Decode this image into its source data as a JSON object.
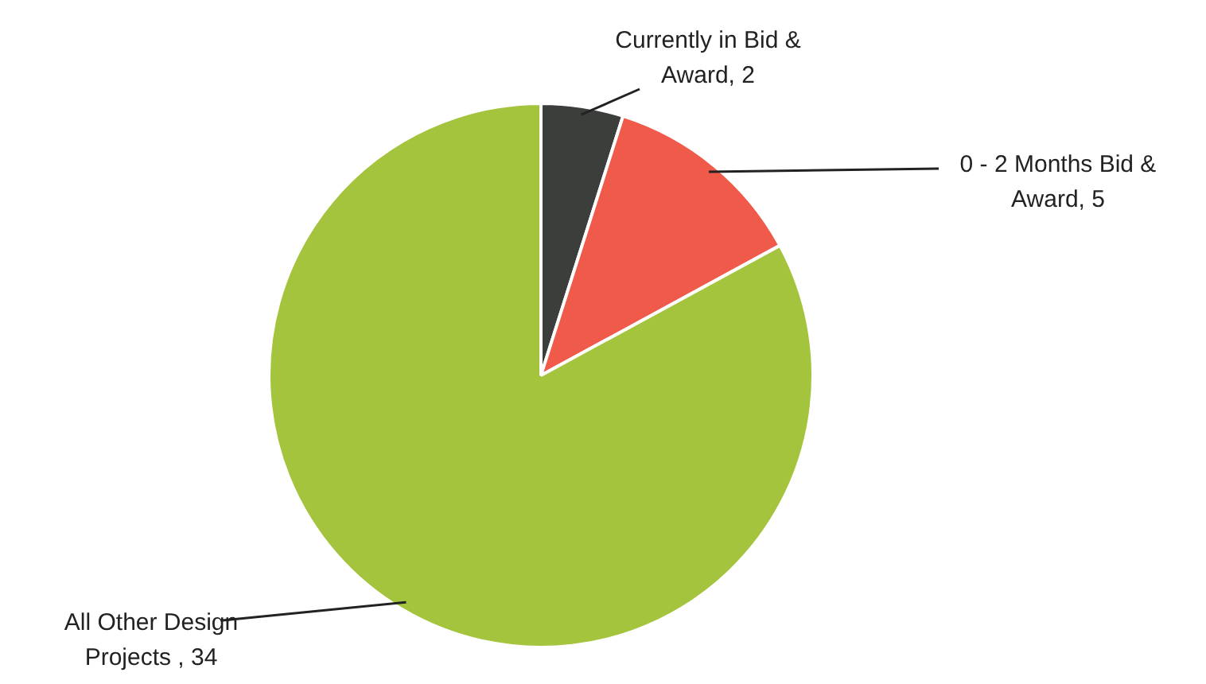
{
  "chart_data": {
    "type": "pie",
    "categories": [
      "Currently in Bid & Award",
      "0 - 2 Months Bid & Award",
      "All Other Design Projects"
    ],
    "values": [
      2,
      5,
      34
    ],
    "colors": [
      "#3b3e3b",
      "#f05a4a",
      "#a5c43e"
    ],
    "value_labels": [
      ", 2",
      ", 5",
      " , 34"
    ],
    "legend": false
  }
}
